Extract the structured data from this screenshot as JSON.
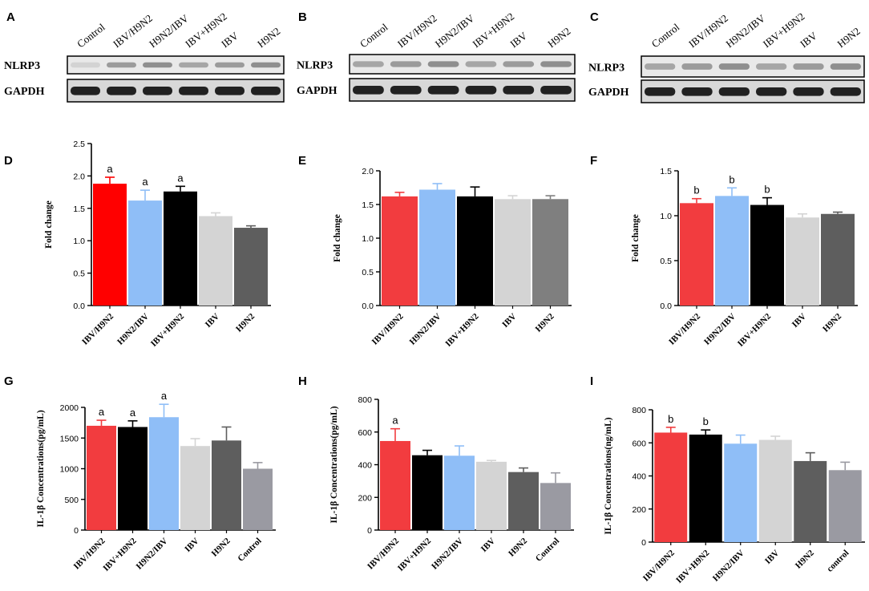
{
  "blots": [
    {
      "panel": "A",
      "lanes": [
        "Control",
        "IBV/H9N2",
        "H9N2/IBV",
        "IBV+H9N2",
        "IBV",
        "H9N2"
      ],
      "rows": [
        "NLRP3",
        "GAPDH"
      ]
    },
    {
      "panel": "B",
      "lanes": [
        "Control",
        "IBV/H9N2",
        "H9N2/IBV",
        "IBV+H9N2",
        "IBV",
        "H9N2"
      ],
      "rows": [
        "NLRP3",
        "GAPDH"
      ]
    },
    {
      "panel": "C",
      "lanes": [
        "Control",
        "IBV/H9N2",
        "H9N2/IBV",
        "IBV+H9N2",
        "IBV",
        "H9N2"
      ],
      "rows": [
        "NLRP3",
        "GAPDH"
      ]
    }
  ],
  "colors": {
    "red": "#f23c3f",
    "blue": "#8fbef7",
    "black": "#000000",
    "lightgray": "#d4d4d4",
    "darkgray": "#5e5e5e",
    "gray": "#9a9aa2",
    "pure_red": "#ff0000"
  },
  "chart_data": [
    {
      "panel": "D",
      "type": "bar",
      "ylabel": "Fold change",
      "ylim": [
        0,
        2.5
      ],
      "yticks": [
        "0.0",
        "0.5",
        "1.0",
        "1.5",
        "2.0",
        "2.5"
      ],
      "categories": [
        "IBV/H9N2",
        "H9N2/IBV",
        "IBV+H9N2",
        "IBV",
        "H9N2"
      ],
      "values": [
        1.88,
        1.62,
        1.76,
        1.38,
        1.2
      ],
      "errors": [
        0.1,
        0.16,
        0.08,
        0.05,
        0.03
      ],
      "labels": [
        "a",
        "a",
        "a",
        "",
        ""
      ],
      "colors": [
        "#ff0000",
        "#8fbef7",
        "#000000",
        "#d4d4d4",
        "#5e5e5e"
      ]
    },
    {
      "panel": "E",
      "type": "bar",
      "ylabel": "Fold change",
      "ylim": [
        0,
        2.0
      ],
      "yticks": [
        "0.0",
        "0.5",
        "1.0",
        "1.5",
        "2.0"
      ],
      "categories": [
        "IBV/H9N2",
        "H9N2/IBV",
        "IBV+H9N2",
        "IBV",
        "H9N2"
      ],
      "values": [
        1.62,
        1.72,
        1.62,
        1.58,
        1.58
      ],
      "errors": [
        0.06,
        0.09,
        0.14,
        0.05,
        0.05
      ],
      "labels": [
        "",
        "",
        "",
        "",
        ""
      ],
      "colors": [
        "#f23c3f",
        "#8fbef7",
        "#000000",
        "#d4d4d4",
        "#7f7f7f"
      ]
    },
    {
      "panel": "F",
      "type": "bar",
      "ylabel": "Fold change",
      "ylim": [
        0,
        1.5
      ],
      "yticks": [
        "0.0",
        "0.5",
        "1.0",
        "1.5"
      ],
      "categories": [
        "IBV/H9N2",
        "H9N2/IBV",
        "IBV+H9N2",
        "IBV",
        "H9N2"
      ],
      "values": [
        1.14,
        1.22,
        1.12,
        0.98,
        1.02
      ],
      "errors": [
        0.05,
        0.09,
        0.08,
        0.04,
        0.02
      ],
      "labels": [
        "b",
        "b",
        "b",
        "",
        ""
      ],
      "colors": [
        "#f23c3f",
        "#8fbef7",
        "#000000",
        "#d4d4d4",
        "#5e5e5e"
      ]
    },
    {
      "panel": "G",
      "type": "bar",
      "ylabel": "IL-1β Concentrations(pg/mL)",
      "ylim": [
        0,
        2000
      ],
      "yticks": [
        "0",
        "500",
        "1000",
        "1500",
        "2000"
      ],
      "categories": [
        "IBV/H9N2",
        "IBV+H9N2",
        "H9N2/IBV",
        "IBV",
        "H9N2",
        "Control"
      ],
      "values": [
        1700,
        1680,
        1840,
        1370,
        1460,
        1000
      ],
      "errors": [
        90,
        100,
        210,
        120,
        220,
        100
      ],
      "labels": [
        "a",
        "a",
        "a",
        "",
        "",
        ""
      ],
      "colors": [
        "#f23c3f",
        "#000000",
        "#8fbef7",
        "#d4d4d4",
        "#5e5e5e",
        "#9a9aa2"
      ]
    },
    {
      "panel": "H",
      "type": "bar",
      "ylabel": "IL-1β Concentrations(pg/mL)",
      "ylim": [
        0,
        800
      ],
      "yticks": [
        "0",
        "200",
        "400",
        "600",
        "800"
      ],
      "categories": [
        "IBV/H9N2",
        "IBV+H9N2",
        "H9N2/IBV",
        "IBV",
        "H9N2",
        "Control"
      ],
      "values": [
        545,
        458,
        455,
        418,
        355,
        288
      ],
      "errors": [
        75,
        30,
        60,
        8,
        25,
        62
      ],
      "labels": [
        "a",
        "",
        "",
        "",
        "",
        ""
      ],
      "colors": [
        "#f23c3f",
        "#000000",
        "#8fbef7",
        "#d4d4d4",
        "#5e5e5e",
        "#9a9aa2"
      ]
    },
    {
      "panel": "I",
      "type": "bar",
      "ylabel": "IL-1β Concentrations(ng/mL)",
      "ylim": [
        0,
        800
      ],
      "yticks": [
        "0",
        "200",
        "400",
        "600",
        "800"
      ],
      "categories": [
        "IBV/H9N2",
        "IBV+H9N2",
        "H9N2/IBV",
        "IBV",
        "H9N2",
        "control"
      ],
      "values": [
        662,
        650,
        595,
        618,
        490,
        435
      ],
      "errors": [
        32,
        28,
        52,
        22,
        50,
        48
      ],
      "labels": [
        "b",
        "b",
        "",
        "",
        "",
        ""
      ],
      "colors": [
        "#f23c3f",
        "#000000",
        "#8fbef7",
        "#d4d4d4",
        "#5e5e5e",
        "#9a9aa2"
      ]
    }
  ]
}
